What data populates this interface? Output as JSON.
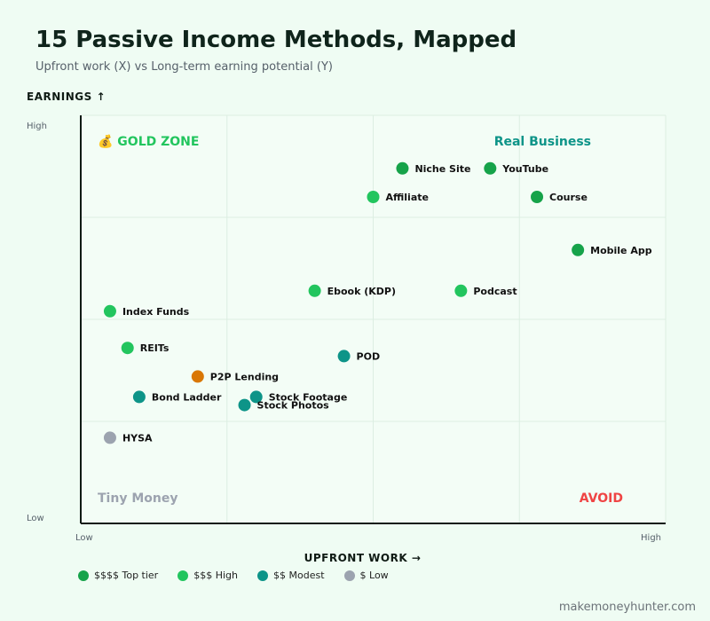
{
  "title": "15 Passive Income Methods, Mapped",
  "subtitle": "Upfront work (X) vs Long-term earning potential (Y)",
  "footer": "makemoneyhunter.com",
  "chart_data": {
    "type": "scatter",
    "xlabel": "UPFRONT WORK →",
    "ylabel": "EARNINGS ↑",
    "x_tick_labels": [
      "Low",
      "High"
    ],
    "y_tick_labels": [
      "Low",
      "High"
    ],
    "xlim": [
      0,
      10
    ],
    "ylim": [
      0,
      10
    ],
    "grid": true,
    "quadrant_labels": [
      {
        "text": "💰 GOLD ZONE",
        "corner": "top-left",
        "color": "#22c55e"
      },
      {
        "text": "Real Business",
        "corner": "top-right",
        "color": "#0d9488"
      },
      {
        "text": "Tiny Money",
        "corner": "bottom-left",
        "color": "#9ca3af"
      },
      {
        "text": "AVOID",
        "corner": "bottom-right",
        "color": "#ef4444"
      }
    ],
    "tiers": [
      {
        "key": "top",
        "label": "$$$$ Top tier",
        "color": "#16a34a"
      },
      {
        "key": "high",
        "label": "$$$ High",
        "color": "#22c55e"
      },
      {
        "key": "modest",
        "label": "$$ Modest",
        "color": "#0d9488"
      },
      {
        "key": "low",
        "label": "$ Low",
        "color": "#9ca3af"
      }
    ],
    "points": [
      {
        "name": "Niche Site",
        "x": 5.5,
        "y": 8.7,
        "tier": "top"
      },
      {
        "name": "YouTube",
        "x": 7.0,
        "y": 8.7,
        "tier": "top"
      },
      {
        "name": "Affiliate",
        "x": 5.0,
        "y": 8.0,
        "tier": "high"
      },
      {
        "name": "Course",
        "x": 7.8,
        "y": 8.0,
        "tier": "top"
      },
      {
        "name": "Mobile App",
        "x": 8.5,
        "y": 6.7,
        "tier": "top"
      },
      {
        "name": "Ebook (KDP)",
        "x": 4.0,
        "y": 5.7,
        "tier": "high"
      },
      {
        "name": "Podcast",
        "x": 6.5,
        "y": 5.7,
        "tier": "high"
      },
      {
        "name": "Index Funds",
        "x": 0.5,
        "y": 5.2,
        "tier": "high"
      },
      {
        "name": "REITs",
        "x": 0.8,
        "y": 4.3,
        "tier": "high"
      },
      {
        "name": "POD",
        "x": 4.5,
        "y": 4.1,
        "tier": "modest"
      },
      {
        "name": "P2P Lending",
        "x": 2.0,
        "y": 3.6,
        "tier": "other",
        "color": "#d97706"
      },
      {
        "name": "Bond Ladder",
        "x": 1.0,
        "y": 3.1,
        "tier": "modest"
      },
      {
        "name": "Stock Footage",
        "x": 3.0,
        "y": 3.1,
        "tier": "modest"
      },
      {
        "name": "Stock Photos",
        "x": 2.8,
        "y": 2.9,
        "tier": "modest"
      },
      {
        "name": "HYSA",
        "x": 0.5,
        "y": 2.1,
        "tier": "low"
      }
    ]
  }
}
